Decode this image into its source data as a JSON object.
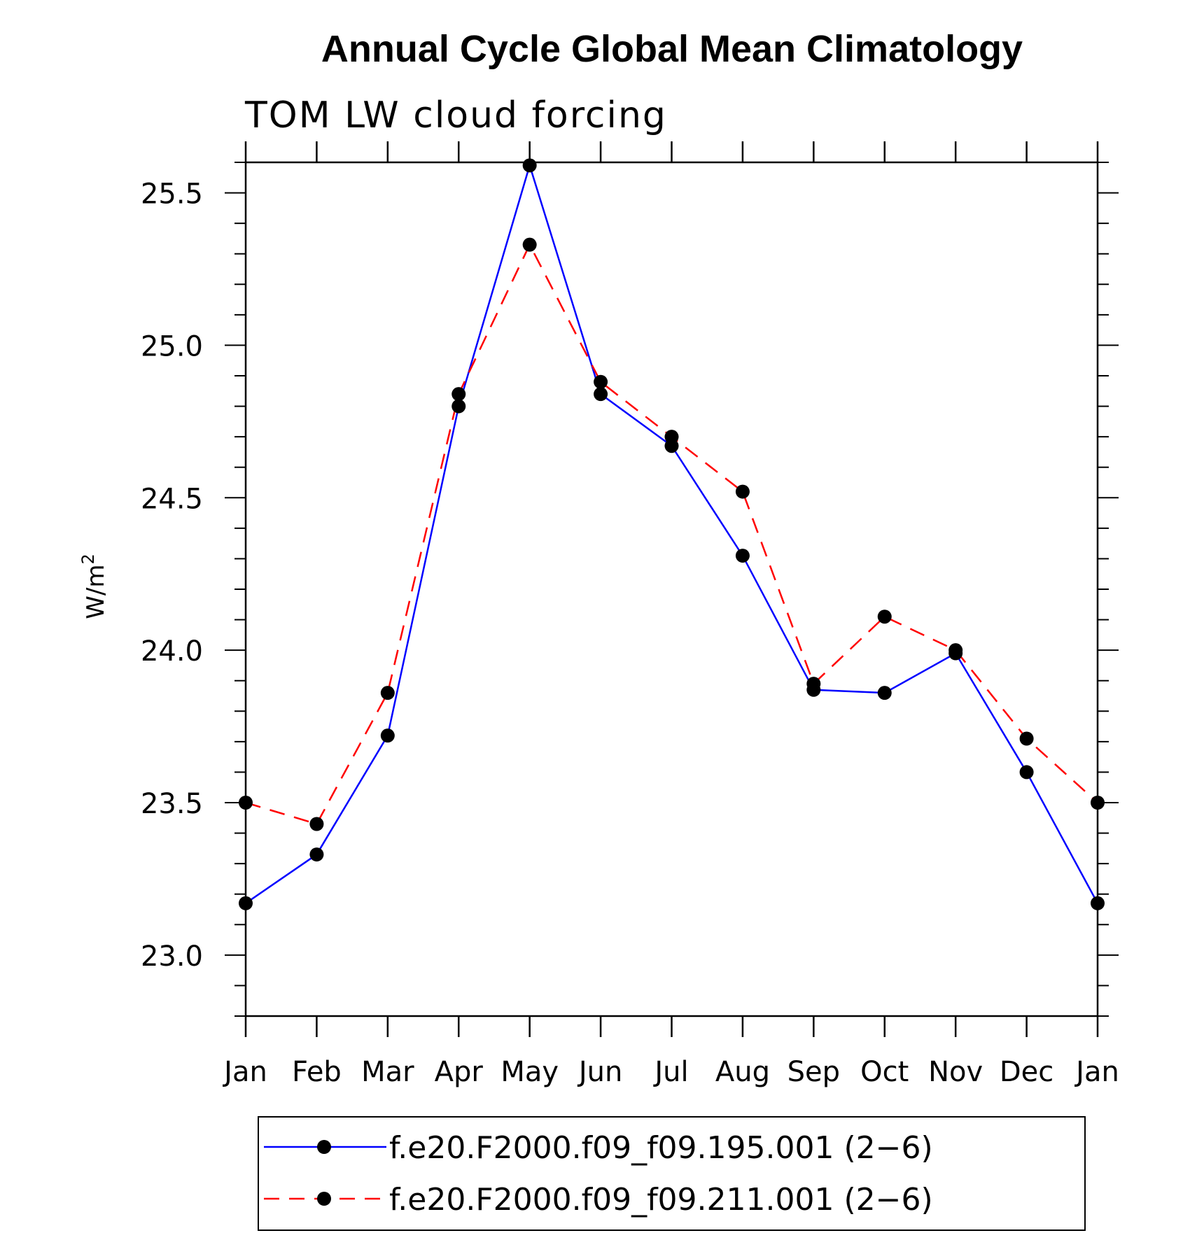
{
  "chart_data": {
    "type": "line",
    "title": "Annual Cycle Global Mean Climatology",
    "subtitle": "TOM LW cloud forcing",
    "ylabel": "W/m",
    "ylabel_sup": "2",
    "xlabel": "",
    "categories": [
      "Jan",
      "Feb",
      "Mar",
      "Apr",
      "May",
      "Jun",
      "Jul",
      "Aug",
      "Sep",
      "Oct",
      "Nov",
      "Dec",
      "Jan"
    ],
    "ylim": [
      22.8,
      25.6
    ],
    "yticks": [
      23.0,
      23.5,
      24.0,
      24.5,
      25.0,
      25.5
    ],
    "ytick_labels": [
      "23.0",
      "23.5",
      "24.0",
      "24.5",
      "25.0",
      "25.5"
    ],
    "grid": false,
    "legend_position": "bottom",
    "series": [
      {
        "name": "f.e20.F2000.f09_f09.195.001 (2−6)",
        "color": "#0000ff",
        "style": "solid",
        "values": [
          23.17,
          23.33,
          23.72,
          24.8,
          25.59,
          24.84,
          24.67,
          24.31,
          23.87,
          23.86,
          23.99,
          23.6,
          23.17
        ]
      },
      {
        "name": "f.e20.F2000.f09_f09.211.001 (2−6)",
        "color": "#ff0000",
        "style": "dashed",
        "values": [
          23.5,
          23.43,
          23.86,
          24.84,
          25.33,
          24.88,
          24.7,
          24.52,
          23.89,
          24.11,
          24.0,
          23.71,
          23.5
        ]
      }
    ]
  }
}
